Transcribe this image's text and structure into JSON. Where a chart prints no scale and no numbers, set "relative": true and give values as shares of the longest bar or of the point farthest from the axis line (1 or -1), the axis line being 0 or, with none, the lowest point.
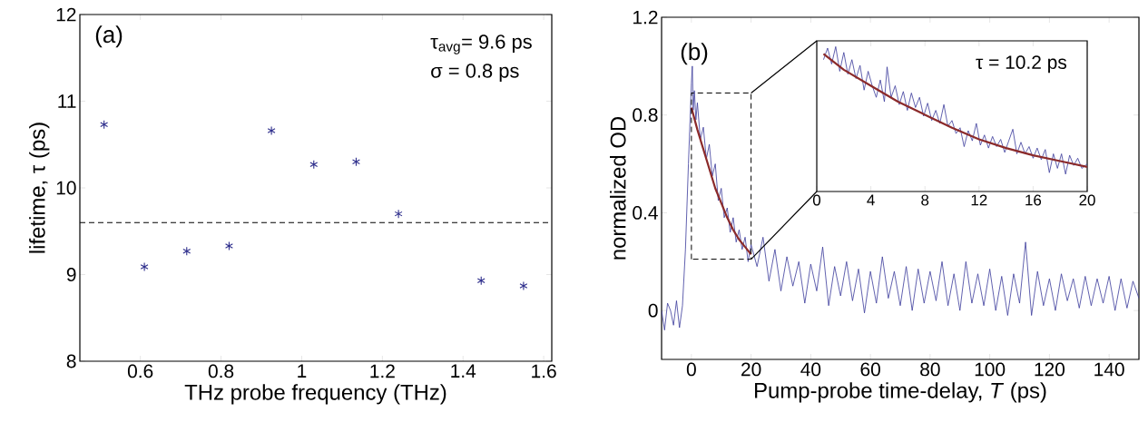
{
  "chart_data": [
    {
      "type": "scatter",
      "x": [
        0.51,
        0.61,
        0.715,
        0.82,
        0.925,
        1.03,
        1.135,
        1.24,
        1.445,
        1.55
      ],
      "values": [
        10.73,
        9.09,
        9.27,
        9.33,
        10.66,
        10.27,
        10.3,
        9.7,
        8.93,
        8.87
      ],
      "color": "#2e2e8c",
      "marker": "cross",
      "xlabel": "THz probe frequency (THz)",
      "ylabel": "lifetime, τ (ps)",
      "xlim": [
        0.45,
        1.62
      ],
      "ylim": [
        8,
        12
      ],
      "xticks": [
        0.6,
        0.8,
        1,
        1.2,
        1.4,
        1.6
      ],
      "yticks": [
        8,
        9,
        10,
        11,
        12
      ],
      "ref_lines": [
        {
          "axis": "y",
          "value": 9.6,
          "line_style": "dashed",
          "color": "#000000"
        }
      ],
      "annotations": [
        "(a)",
        "τ$_{avg}$= 9.6 ps",
        "σ = 0.8 ps"
      ]
    },
    {
      "type": "line",
      "xlabel": "Pump-probe time-delay, *T* (ps)",
      "ylabel": "normalized OD",
      "xlim": [
        -10,
        150
      ],
      "ylim": [
        -0.2,
        1.2
      ],
      "xticks": [
        0,
        20,
        40,
        60,
        80,
        100,
        120,
        140
      ],
      "yticks": [
        0,
        0.4,
        0.8,
        1.2
      ],
      "series": [
        {
          "color": "#3a3a9a",
          "x": [
            -10,
            -9,
            -8,
            -7,
            -6,
            -5,
            -4,
            -3,
            -2,
            -1,
            0,
            0.3,
            0.6,
            1,
            1.5,
            2,
            3,
            4,
            5,
            6,
            7,
            8,
            9,
            10,
            11,
            12,
            13,
            14,
            15,
            16,
            17,
            18,
            19,
            20,
            22,
            24,
            26,
            28,
            30,
            32,
            34,
            36,
            38,
            40,
            42,
            44,
            46,
            48,
            50,
            52,
            54,
            56,
            58,
            60,
            62,
            64,
            66,
            68,
            70,
            72,
            74,
            76,
            78,
            80,
            82,
            84,
            86,
            88,
            90,
            92,
            94,
            96,
            98,
            100,
            102,
            104,
            106,
            108,
            110,
            112,
            114,
            116,
            118,
            120,
            122,
            124,
            126,
            128,
            130,
            132,
            134,
            136,
            138,
            140,
            142,
            144,
            146,
            148,
            150
          ],
          "values": [
            0.0,
            -0.08,
            0.03,
            0.0,
            -0.06,
            0.04,
            -0.07,
            0.02,
            0.25,
            0.6,
            0.93,
            1.0,
            0.82,
            0.9,
            0.78,
            0.85,
            0.7,
            0.75,
            0.62,
            0.68,
            0.55,
            0.6,
            0.45,
            0.5,
            0.38,
            0.42,
            0.32,
            0.38,
            0.28,
            0.33,
            0.25,
            0.3,
            0.2,
            0.27,
            0.18,
            0.3,
            0.12,
            0.25,
            0.08,
            0.22,
            0.1,
            0.2,
            0.03,
            0.19,
            0.08,
            0.26,
            0.02,
            0.18,
            0.06,
            0.2,
            0.04,
            0.17,
            -0.01,
            0.16,
            0.03,
            0.22,
            0.05,
            0.16,
            0.02,
            0.18,
            0.0,
            0.17,
            0.03,
            0.16,
            0.04,
            0.2,
            0.02,
            0.15,
            0.0,
            0.2,
            0.03,
            0.15,
            0.02,
            0.17,
            0.0,
            0.14,
            -0.02,
            0.15,
            0.03,
            0.28,
            -0.02,
            0.16,
            0.02,
            0.13,
            0.0,
            0.15,
            0.04,
            0.13,
            0.01,
            0.14,
            0.02,
            0.13,
            0.03,
            0.14,
            0.0,
            0.13,
            0.01,
            0.12,
            0.05
          ]
        },
        {
          "color": "#8b2a2a",
          "x": [
            0,
            2,
            4,
            6,
            8,
            10,
            12,
            14,
            16,
            18,
            20
          ],
          "values": [
            0.83,
            0.74,
            0.66,
            0.58,
            0.5,
            0.44,
            0.38,
            0.33,
            0.29,
            0.26,
            0.23
          ]
        }
      ],
      "annotations": [
        "(b)"
      ]
    },
    {
      "type": "line",
      "xlim": [
        0,
        20
      ],
      "relative": true,
      "xticks": [
        0,
        4,
        8,
        12,
        16,
        20
      ],
      "tick_labels": "x",
      "series": [
        {
          "color": "#3a3a9a",
          "x": [
            0.5,
            0.8,
            1.1,
            1.4,
            1.7,
            2.0,
            2.3,
            2.6,
            2.9,
            3.2,
            3.5,
            3.8,
            4.1,
            4.4,
            4.7,
            5.0,
            5.2,
            5.5,
            5.8,
            6.1,
            6.4,
            6.7,
            7.0,
            7.3,
            7.6,
            7.9,
            8.2,
            8.5,
            8.8,
            9.1,
            9.4,
            9.7,
            10.0,
            10.3,
            10.6,
            10.9,
            11.2,
            11.5,
            11.8,
            12.1,
            12.4,
            12.7,
            13.0,
            13.3,
            13.6,
            13.9,
            14.2,
            14.5,
            14.8,
            15.1,
            15.4,
            15.7,
            16.0,
            16.3,
            16.6,
            16.9,
            17.2,
            17.5,
            17.8,
            18.1,
            18.4,
            18.7,
            19.0,
            19.3,
            19.6,
            20.0
          ],
          "values": [
            0.91,
            0.99,
            0.88,
            1,
            0.83,
            0.96,
            0.81,
            0.91,
            0.78,
            0.87,
            0.7,
            0.83,
            0.73,
            0.65,
            0.77,
            0.62,
            0.86,
            0.65,
            0.73,
            0.6,
            0.69,
            0.56,
            0.68,
            0.58,
            0.65,
            0.52,
            0.61,
            0.49,
            0.56,
            0.47,
            0.6,
            0.45,
            0.49,
            0.4,
            0.44,
            0.31,
            0.42,
            0.35,
            0.47,
            0.32,
            0.39,
            0.3,
            0.38,
            0.31,
            0.36,
            0.27,
            0.35,
            0.43,
            0.26,
            0.34,
            0.26,
            0.31,
            0.23,
            0.3,
            0.22,
            0.29,
            0.13,
            0.26,
            0.16,
            0.26,
            0.12,
            0.25,
            0.18,
            0.23,
            0.16,
            0.19
          ]
        },
        {
          "color": "#8b2a2a",
          "x": [
            0.5,
            2,
            4,
            6,
            8,
            10,
            12,
            14,
            16,
            18,
            20
          ],
          "values": [
            0.95,
            0.84,
            0.73,
            0.62,
            0.53,
            0.44,
            0.36,
            0.3,
            0.25,
            0.21,
            0.17
          ]
        }
      ],
      "annotations": [
        "τ = 10.2 ps"
      ]
    }
  ]
}
